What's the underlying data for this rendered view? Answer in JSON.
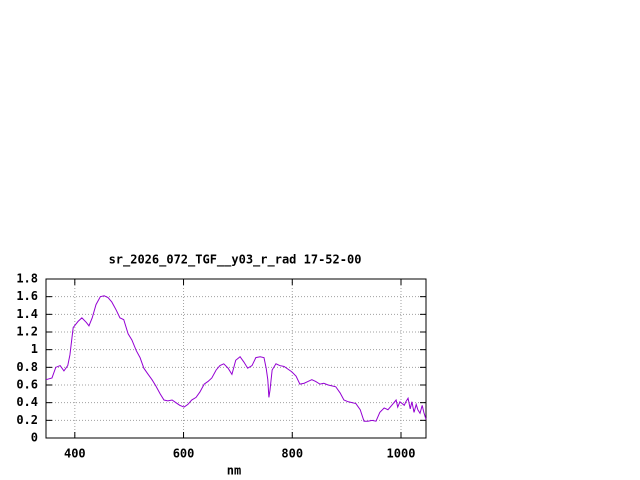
{
  "chart_data": {
    "type": "line",
    "title": "sr_2026_072_TGF__y03_r_rad 17-52-00",
    "x_label": "nm",
    "x": [
      347,
      358,
      365,
      373,
      380,
      387,
      391,
      397,
      406,
      413,
      421,
      426,
      432,
      439,
      447,
      454,
      461,
      468,
      476,
      483,
      490,
      498,
      505,
      513,
      520,
      527,
      535,
      542,
      549,
      557,
      564,
      571,
      579,
      586,
      593,
      601,
      608,
      615,
      623,
      630,
      638,
      645,
      652,
      660,
      667,
      674,
      682,
      689,
      696,
      704,
      711,
      718,
      726,
      733,
      741,
      748,
      752,
      755,
      757,
      759,
      763,
      770,
      777,
      785,
      792,
      799,
      807,
      814,
      822,
      829,
      836,
      843,
      851,
      858,
      866,
      873,
      880,
      888,
      895,
      903,
      910,
      917,
      925,
      932,
      939,
      947,
      954,
      961,
      969,
      976,
      983,
      991,
      994,
      998,
      1006,
      1009,
      1013,
      1017,
      1020,
      1024,
      1028,
      1031,
      1035,
      1039,
      1042,
      1046
    ],
    "series": [
      {
        "color": "#9400d3",
        "values": [
          0.66,
          0.68,
          0.8,
          0.82,
          0.76,
          0.82,
          0.94,
          1.25,
          1.32,
          1.36,
          1.31,
          1.27,
          1.36,
          1.51,
          1.6,
          1.61,
          1.59,
          1.54,
          1.45,
          1.36,
          1.34,
          1.18,
          1.11,
          0.99,
          0.91,
          0.79,
          0.72,
          0.66,
          0.59,
          0.5,
          0.43,
          0.42,
          0.43,
          0.4,
          0.37,
          0.35,
          0.38,
          0.43,
          0.46,
          0.52,
          0.61,
          0.64,
          0.68,
          0.77,
          0.82,
          0.84,
          0.79,
          0.72,
          0.88,
          0.92,
          0.86,
          0.79,
          0.82,
          0.91,
          0.92,
          0.91,
          0.79,
          0.66,
          0.46,
          0.54,
          0.77,
          0.84,
          0.82,
          0.81,
          0.78,
          0.75,
          0.7,
          0.61,
          0.62,
          0.64,
          0.66,
          0.64,
          0.61,
          0.62,
          0.6,
          0.59,
          0.58,
          0.51,
          0.43,
          0.41,
          0.4,
          0.39,
          0.32,
          0.19,
          0.19,
          0.2,
          0.19,
          0.29,
          0.34,
          0.32,
          0.37,
          0.43,
          0.35,
          0.41,
          0.37,
          0.41,
          0.45,
          0.33,
          0.41,
          0.29,
          0.38,
          0.32,
          0.28,
          0.37,
          0.29,
          0.21
        ]
      }
    ],
    "xlim": [
      347,
      1046
    ],
    "xticks": [
      400,
      600,
      800,
      1000
    ],
    "ylim": [
      0,
      1.8
    ],
    "yticks": [
      0,
      0.2,
      0.4,
      0.6,
      0.8,
      1,
      1.2,
      1.4,
      1.6,
      1.8
    ],
    "grid": true
  }
}
